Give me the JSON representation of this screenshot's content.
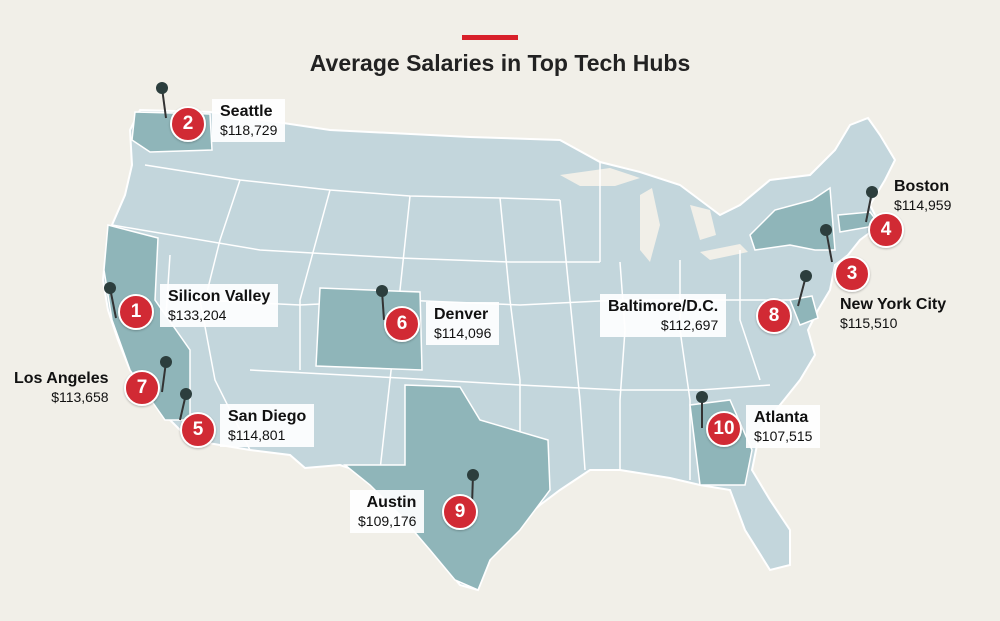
{
  "header": {
    "title": "Average Salaries in Top Tech Hubs"
  },
  "colors": {
    "accent": "#d12a34",
    "land": "#c3d6dc",
    "highlight": "#8fb5b9",
    "border": "#ffffff",
    "background": "#f1efe8"
  },
  "hubs": [
    {
      "rank": "1",
      "city": "Silicon Valley",
      "salary": "$133,204"
    },
    {
      "rank": "2",
      "city": "Seattle",
      "salary": "$118,729"
    },
    {
      "rank": "3",
      "city": "New York City",
      "salary": "$115,510"
    },
    {
      "rank": "4",
      "city": "Boston",
      "salary": "$114,959"
    },
    {
      "rank": "5",
      "city": "San Diego",
      "salary": "$114,801"
    },
    {
      "rank": "6",
      "city": "Denver",
      "salary": "$114,096"
    },
    {
      "rank": "7",
      "city": "Los Angeles",
      "salary": "$113,658"
    },
    {
      "rank": "8",
      "city": "Baltimore/D.C.",
      "salary": "$112,697"
    },
    {
      "rank": "9",
      "city": "Austin",
      "salary": "$109,176"
    },
    {
      "rank": "10",
      "city": "Atlanta",
      "salary": "$107,515"
    }
  ]
}
